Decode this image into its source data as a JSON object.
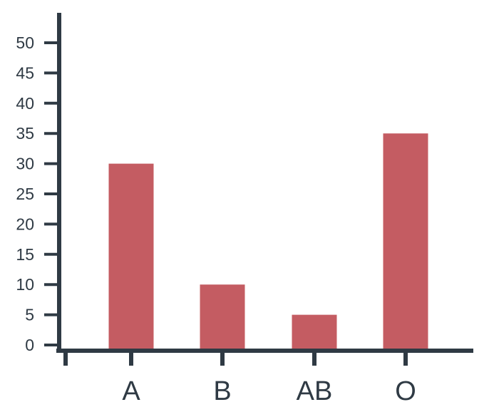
{
  "chart_data": {
    "type": "bar",
    "title": "",
    "xlabel": "",
    "ylabel": "",
    "categories": [
      "A",
      "B",
      "AB",
      "O"
    ],
    "values": [
      30,
      10,
      5,
      35
    ],
    "ylim": [
      0,
      50
    ],
    "yticks": [
      0,
      5,
      10,
      15,
      20,
      25,
      30,
      35,
      40,
      45,
      50
    ],
    "grid": false,
    "legend": "none",
    "colors": {
      "bar": "#c45c62",
      "axis": "#2f3a44",
      "text": "#2f3a44",
      "background": "#ffffff"
    }
  }
}
